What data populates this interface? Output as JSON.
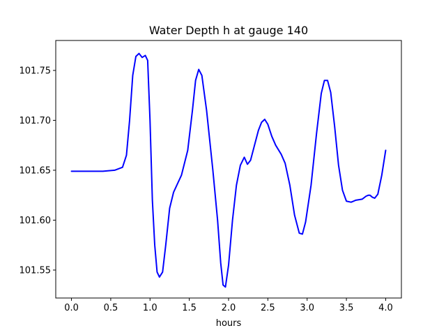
{
  "chart_data": {
    "type": "line",
    "title": "Water Depth h at gauge 140",
    "xlabel": "hours",
    "ylabel": "",
    "xlim": [
      -0.2,
      4.2
    ],
    "ylim": [
      101.522,
      101.78
    ],
    "xticks": [
      0.0,
      0.5,
      1.0,
      1.5,
      2.0,
      2.5,
      3.0,
      3.5,
      4.0
    ],
    "xtick_labels": [
      "0.0",
      "0.5",
      "1.0",
      "1.5",
      "2.0",
      "2.5",
      "3.0",
      "3.5",
      "4.0"
    ],
    "yticks": [
      101.55,
      101.6,
      101.65,
      101.7,
      101.75
    ],
    "ytick_labels": [
      "101.55",
      "101.60",
      "101.65",
      "101.70",
      "101.75"
    ],
    "grid": false,
    "legend": "none",
    "series": [
      {
        "color": "#0000ff",
        "x": [
          0.0,
          0.2,
          0.4,
          0.55,
          0.65,
          0.7,
          0.74,
          0.78,
          0.82,
          0.86,
          0.9,
          0.94,
          0.97,
          1.0,
          1.03,
          1.06,
          1.09,
          1.12,
          1.16,
          1.2,
          1.25,
          1.3,
          1.4,
          1.48,
          1.54,
          1.58,
          1.62,
          1.66,
          1.72,
          1.8,
          1.86,
          1.9,
          1.93,
          1.96,
          2.0,
          2.05,
          2.1,
          2.15,
          2.2,
          2.24,
          2.28,
          2.33,
          2.38,
          2.42,
          2.46,
          2.5,
          2.55,
          2.6,
          2.67,
          2.72,
          2.78,
          2.84,
          2.9,
          2.94,
          2.98,
          3.05,
          3.12,
          3.18,
          3.22,
          3.26,
          3.3,
          3.35,
          3.4,
          3.45,
          3.5,
          3.56,
          3.62,
          3.7,
          3.75,
          3.78,
          3.8,
          3.83,
          3.86,
          3.9,
          3.95,
          4.0
        ],
        "y": [
          101.649,
          101.649,
          101.649,
          101.65,
          101.653,
          101.665,
          101.7,
          101.745,
          101.764,
          101.767,
          101.763,
          101.765,
          101.76,
          101.7,
          101.62,
          101.575,
          101.548,
          101.543,
          101.548,
          101.575,
          101.612,
          101.628,
          101.645,
          101.67,
          101.71,
          101.74,
          101.751,
          101.745,
          101.71,
          101.65,
          101.6,
          101.557,
          101.535,
          101.533,
          101.555,
          101.6,
          101.635,
          101.655,
          101.663,
          101.656,
          101.66,
          101.675,
          101.69,
          101.698,
          101.701,
          101.696,
          101.684,
          101.675,
          101.666,
          101.657,
          101.635,
          101.605,
          101.587,
          101.586,
          101.598,
          101.635,
          101.687,
          101.727,
          101.74,
          101.74,
          101.728,
          101.694,
          101.655,
          101.63,
          101.619,
          101.618,
          101.62,
          101.621,
          101.624,
          101.625,
          101.625,
          101.623,
          101.622,
          101.626,
          101.645,
          101.67
        ]
      }
    ]
  }
}
